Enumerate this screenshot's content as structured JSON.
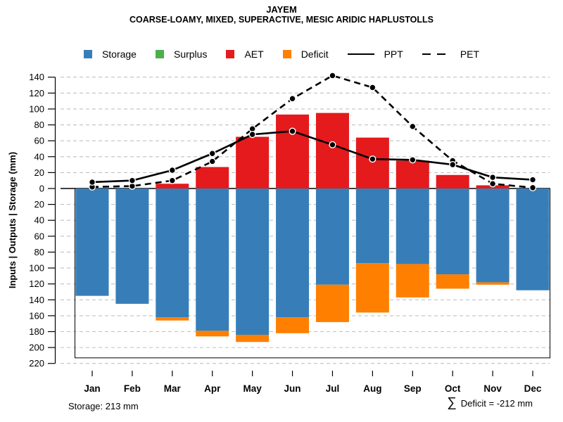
{
  "title": "JAYEM",
  "subtitle": "COARSE-LOAMY, MIXED, SUPERACTIVE, MESIC ARIDIC HAPLUSTOLLS",
  "y_axis_label": "Inputs | Outputs | Storage   (mm)",
  "footer": {
    "left": "Storage: 213 mm",
    "sigma": "∑",
    "right": "Deficit = -212 mm"
  },
  "legend": [
    {
      "label": "Storage",
      "marker": "square",
      "color": "#377EB8"
    },
    {
      "label": "Surplus",
      "marker": "square",
      "color": "#4DAF4A"
    },
    {
      "label": "AET",
      "marker": "square",
      "color": "#E41A1C"
    },
    {
      "label": "Deficit",
      "marker": "square",
      "color": "#FF7F00"
    },
    {
      "label": "PPT",
      "marker": "line-solid",
      "color": "#000000"
    },
    {
      "label": "PET",
      "marker": "line-dashed",
      "color": "#000000"
    }
  ],
  "colors": {
    "storage": "#377EB8",
    "surplus": "#4DAF4A",
    "aet": "#E41A1C",
    "deficit": "#FF7F00",
    "line": "#000000",
    "grid": "#C0C0C0"
  },
  "chart_data": {
    "type": "bar",
    "subtype": "water-balance (stacked bars up/down + lines)",
    "categories": [
      "Jan",
      "Feb",
      "Mar",
      "Apr",
      "May",
      "Jun",
      "Jul",
      "Aug",
      "Sep",
      "Oct",
      "Nov",
      "Dec"
    ],
    "axis": {
      "y_up_max": 140,
      "y_down_max": 220,
      "y_tick_step": 20,
      "grid": "dashed"
    },
    "storage_capacity_mm": 213,
    "deficit_total_mm": -212,
    "series": [
      {
        "name": "Storage",
        "type": "bar",
        "direction": "down",
        "color": "#377EB8",
        "values": [
          135,
          145,
          162,
          179,
          184,
          162,
          121,
          94,
          95,
          108,
          118,
          128
        ]
      },
      {
        "name": "Surplus",
        "type": "bar",
        "direction": "up",
        "color": "#4DAF4A",
        "values": [
          0,
          0,
          0,
          0,
          0,
          0,
          0,
          0,
          0,
          0,
          0,
          0
        ]
      },
      {
        "name": "AET",
        "type": "bar",
        "direction": "up",
        "color": "#E41A1C",
        "values": [
          0,
          0,
          6,
          27,
          65,
          93,
          95,
          64,
          35,
          17,
          4,
          0
        ]
      },
      {
        "name": "Deficit",
        "type": "bar",
        "direction": "down-stacked-below-storage",
        "color": "#FF7F00",
        "values": [
          0,
          0,
          4,
          7,
          9,
          20,
          47,
          62,
          42,
          18,
          3,
          0
        ]
      },
      {
        "name": "PPT",
        "type": "line",
        "style": "solid",
        "color": "#000000",
        "values": [
          8,
          10,
          23,
          44,
          68,
          72,
          55,
          37,
          36,
          30,
          14,
          11
        ]
      },
      {
        "name": "PET",
        "type": "line",
        "style": "dashed",
        "color": "#000000",
        "values": [
          2,
          3,
          10,
          34,
          75,
          113,
          142,
          127,
          78,
          35,
          6,
          1
        ]
      }
    ],
    "legend_position": "top-center"
  }
}
